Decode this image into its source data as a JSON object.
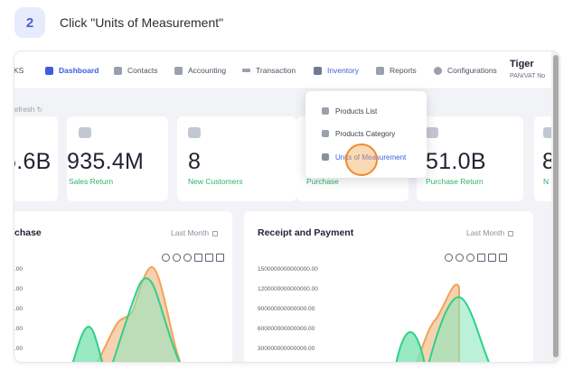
{
  "step": {
    "number": "2",
    "instruction": "Click \"Units of Measurement\""
  },
  "nav": {
    "items": [
      {
        "label": "KS",
        "icon": "partial-icon"
      },
      {
        "label": "Dashboard",
        "icon": "dashboard-icon",
        "active": true
      },
      {
        "label": "Contacts",
        "icon": "contacts-icon"
      },
      {
        "label": "Accounting",
        "icon": "accounting-icon"
      },
      {
        "label": "Transaction",
        "icon": "transaction-icon"
      },
      {
        "label": "Inventory",
        "icon": "inventory-icon",
        "highlighted": true
      },
      {
        "label": "Reports",
        "icon": "reports-icon"
      },
      {
        "label": "Configurations",
        "icon": "gear-icon"
      }
    ],
    "user": {
      "name": "Tiger",
      "subtitle": "PAN/VAT No"
    }
  },
  "refresh_label": "efresh",
  "cards": [
    {
      "value": "5.6B",
      "label": ""
    },
    {
      "value": "935.4M",
      "label": "Sales Return"
    },
    {
      "value": "8",
      "label": "New Customers"
    },
    {
      "value": "",
      "label": "Purchase"
    },
    {
      "value": "51.0B",
      "label": "Purchase Return"
    },
    {
      "value": "8",
      "label": "N"
    }
  ],
  "dropdown": {
    "items": [
      {
        "label": "Products List",
        "icon": "box-icon"
      },
      {
        "label": "Products Category",
        "icon": "category-icon"
      },
      {
        "label": "Units of Measurement",
        "icon": "ruler-icon",
        "selected": true
      }
    ]
  },
  "panels": {
    "left": {
      "title": "chase",
      "period": "Last Month",
      "yticks": [
        ".00",
        ".00",
        ".00",
        ".00",
        ".00"
      ]
    },
    "right": {
      "title": "Receipt and Payment",
      "period": "Last Month",
      "yticks": [
        "1500000000000000.00",
        "1200000000000000.00",
        "900000000000000.00",
        "600000000000000.00",
        "300000000000000.00"
      ]
    }
  },
  "colors": {
    "accent": "#3d5ce0",
    "positive": "#2fb36a",
    "series_orange": "#f0a35a",
    "series_green": "#2fd08a",
    "click_marker": "#f08a2d"
  }
}
